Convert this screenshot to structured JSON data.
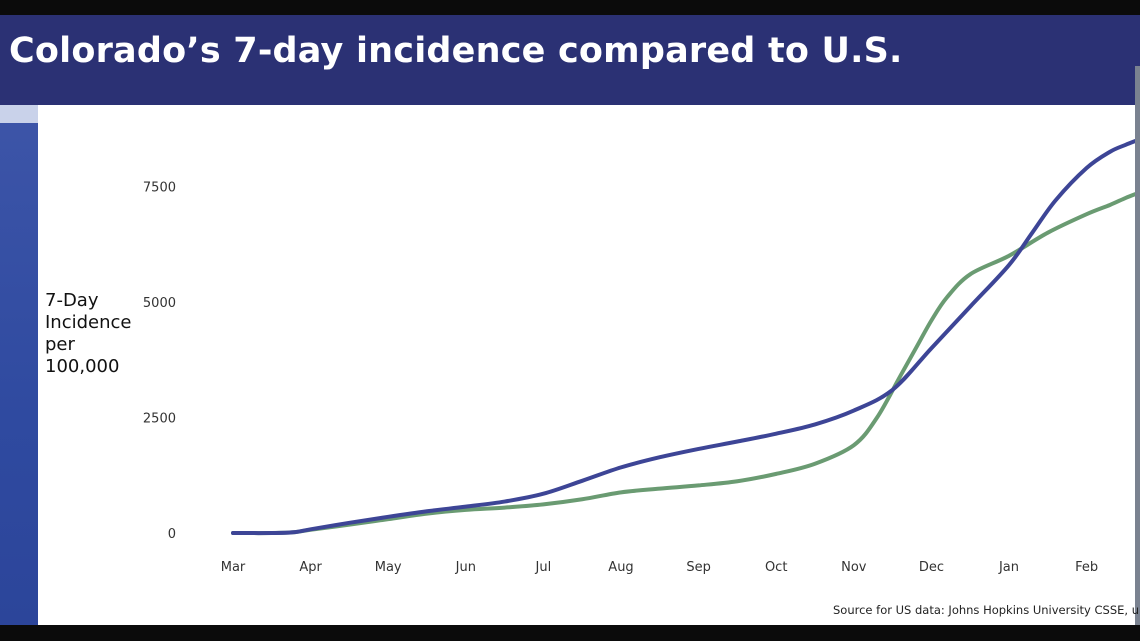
{
  "title": "Colorado’s 7-day incidence compared to U.S.",
  "source_note": "Source for US data: Johns Hopkins University CSSE, u",
  "colors": {
    "header": "#2b3174",
    "us_line": "#3d4596",
    "colorado_line": "#6a9b72"
  },
  "chart_data": {
    "type": "line",
    "title": "",
    "ylabel_lines": [
      "7-Day",
      "Incidence",
      "per",
      "100,000"
    ],
    "xlabel": "",
    "categories": [
      "Mar",
      "Apr",
      "May",
      "Jun",
      "Jul",
      "Aug",
      "Sep",
      "Oct",
      "Nov",
      "Dec",
      "Jan",
      "Feb"
    ],
    "yticks": [
      0,
      2500,
      5000,
      7500
    ],
    "ylim": [
      0,
      8700
    ],
    "grid": false,
    "series": [
      {
        "color": "#3d4596",
        "x": [
          0,
          0.5,
          0.8,
          1,
          1.5,
          2,
          2.5,
          3,
          3.5,
          4,
          4.5,
          5,
          5.5,
          6,
          6.5,
          7,
          7.5,
          8,
          8.5,
          9,
          9.5,
          10,
          10.3,
          10.6,
          11,
          11.3,
          11.5,
          11.65
        ],
        "values": [
          0,
          0,
          20,
          80,
          220,
          350,
          470,
          570,
          680,
          850,
          1130,
          1420,
          1640,
          1820,
          1980,
          2150,
          2350,
          2650,
          3100,
          4000,
          4900,
          5800,
          6500,
          7200,
          7900,
          8250,
          8400,
          8500
        ]
      },
      {
        "color": "#6a9b72",
        "x": [
          0,
          0.5,
          0.8,
          1,
          1.5,
          2,
          2.5,
          3,
          3.5,
          4,
          4.5,
          5,
          5.5,
          6,
          6.5,
          7,
          7.5,
          8,
          8.3,
          8.6,
          8.8,
          9,
          9.2,
          9.5,
          10,
          10.5,
          11,
          11.3,
          11.5,
          11.65
        ],
        "values": [
          0,
          0,
          20,
          70,
          180,
          300,
          420,
          500,
          550,
          620,
          730,
          880,
          960,
          1030,
          1120,
          1280,
          1500,
          1900,
          2500,
          3400,
          4000,
          4600,
          5100,
          5600,
          6000,
          6500,
          6900,
          7100,
          7250,
          7350
        ]
      }
    ]
  }
}
